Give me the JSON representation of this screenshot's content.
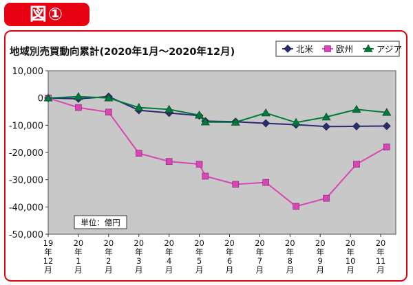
{
  "badge": {
    "label": "図①"
  },
  "chart_data": {
    "type": "line",
    "title": "地域別売買動向累計(2020年1月～2020年12月)",
    "unit_label": "単位：億円",
    "ylim": [
      -50000,
      10000
    ],
    "yticks": [
      10000,
      0,
      -10000,
      -20000,
      -30000,
      -40000,
      -50000
    ],
    "ytick_labels": [
      "10,000",
      "0",
      "-10,000",
      "-20,000",
      "-30,000",
      "-40,000",
      "-50,000"
    ],
    "categories": [
      [
        "19",
        "年",
        "12",
        "月"
      ],
      [
        "20",
        "年",
        "1",
        "月"
      ],
      [
        "20",
        "年",
        "2",
        "月"
      ],
      [
        "20",
        "年",
        "3",
        "月"
      ],
      [
        "20",
        "年",
        "4",
        "月"
      ],
      [
        "20",
        "年",
        "5",
        "月"
      ],
      [
        "20",
        "年",
        "6",
        "月"
      ],
      [
        "20",
        "年",
        "7",
        "月"
      ],
      [
        "20",
        "年",
        "8",
        "月"
      ],
      [
        "20",
        "年",
        "9",
        "月"
      ],
      [
        "20",
        "年",
        "10",
        "月"
      ],
      [
        "20",
        "年",
        "11",
        "月"
      ]
    ],
    "x": [
      0,
      1,
      2,
      3,
      4,
      5,
      5.2,
      6.2,
      7.2,
      8.2,
      9.2,
      10.2,
      11.2
    ],
    "series": [
      {
        "name": "北米",
        "color": "#2b2a78",
        "marker": "diamond",
        "values": [
          0,
          -300,
          500,
          -4500,
          -5500,
          -6500,
          -8500,
          -8700,
          -9300,
          -9800,
          -10500,
          -10400,
          -10300
        ]
      },
      {
        "name": "欧州",
        "color": "#d945b6",
        "marker": "square",
        "values": [
          0,
          -3500,
          -5200,
          -20300,
          -23300,
          -24300,
          -28700,
          -31700,
          -31000,
          -39800,
          -36800,
          -24300,
          -18000
        ]
      },
      {
        "name": "アジア",
        "color": "#007a3c",
        "marker": "triangle",
        "values": [
          0,
          500,
          0,
          -3500,
          -4200,
          -6300,
          -8800,
          -8900,
          -5500,
          -9000,
          -7000,
          -4200,
          -5300
        ]
      }
    ],
    "legend_position": "top-right",
    "plot_background": "#c8c8c8",
    "grid": false
  }
}
